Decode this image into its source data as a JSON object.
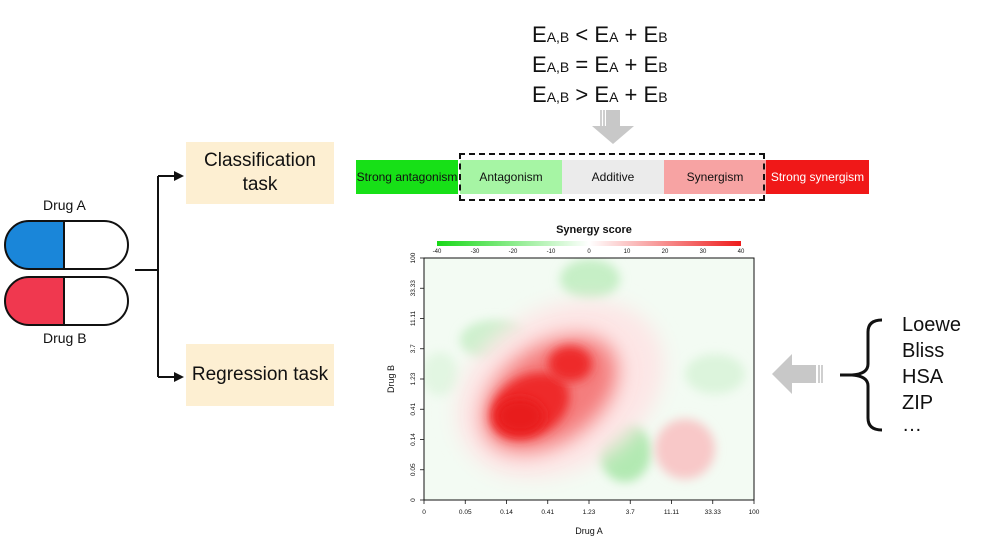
{
  "equations": [
    {
      "lhs": "E",
      "lhs_sub": "A,B",
      "op": "<",
      "a": "E",
      "a_sub": "A",
      "plus": "+",
      "b": "E",
      "b_sub": "B"
    },
    {
      "lhs": "E",
      "lhs_sub": "A,B",
      "op": "=",
      "a": "E",
      "a_sub": "A",
      "plus": "+",
      "b": "E",
      "b_sub": "B"
    },
    {
      "lhs": "E",
      "lhs_sub": "A,B",
      "op": ">",
      "a": "E",
      "a_sub": "A",
      "plus": "+",
      "b": "E",
      "b_sub": "B"
    }
  ],
  "drugs": {
    "a_label": "Drug A",
    "b_label": "Drug B",
    "a_color": "#1a86d9",
    "b_color": "#f0384f"
  },
  "tasks": {
    "classification": "Classification task",
    "regression": "Regression task"
  },
  "scale": [
    {
      "label": "Strong antagonism",
      "color": "#17e017"
    },
    {
      "label": "Antagonism",
      "color": "#a6f5a4"
    },
    {
      "label": "Additive",
      "color": "#ebebeb"
    },
    {
      "label": "Synergism",
      "color": "#f7a3a3"
    },
    {
      "label": "Strong synergism",
      "color": "#f01818"
    }
  ],
  "plot": {
    "title": "Synergy score",
    "xlabel": "Drug A",
    "ylabel": "Drug B",
    "colorbar_ticks": [
      "-40",
      "-30",
      "-20",
      "-10",
      "0",
      "10",
      "20",
      "30",
      "40"
    ],
    "x_ticks": [
      "0",
      "0.05",
      "0.14",
      "0.41",
      "1.23",
      "3.7",
      "11.11",
      "33.33",
      "100"
    ],
    "y_ticks": [
      "0",
      "0.05",
      "0.14",
      "0.41",
      "1.23",
      "3.7",
      "11.11",
      "33.33",
      "100"
    ]
  },
  "metrics": [
    "Loewe",
    "Bliss",
    "HSA",
    "ZIP",
    "…"
  ],
  "colors": {
    "task_bg": "#fdefd2",
    "arrow_gray": "#c8c8c8",
    "synergy_red": "#ee1c1c",
    "antagonism_green": "#8fe08f"
  }
}
